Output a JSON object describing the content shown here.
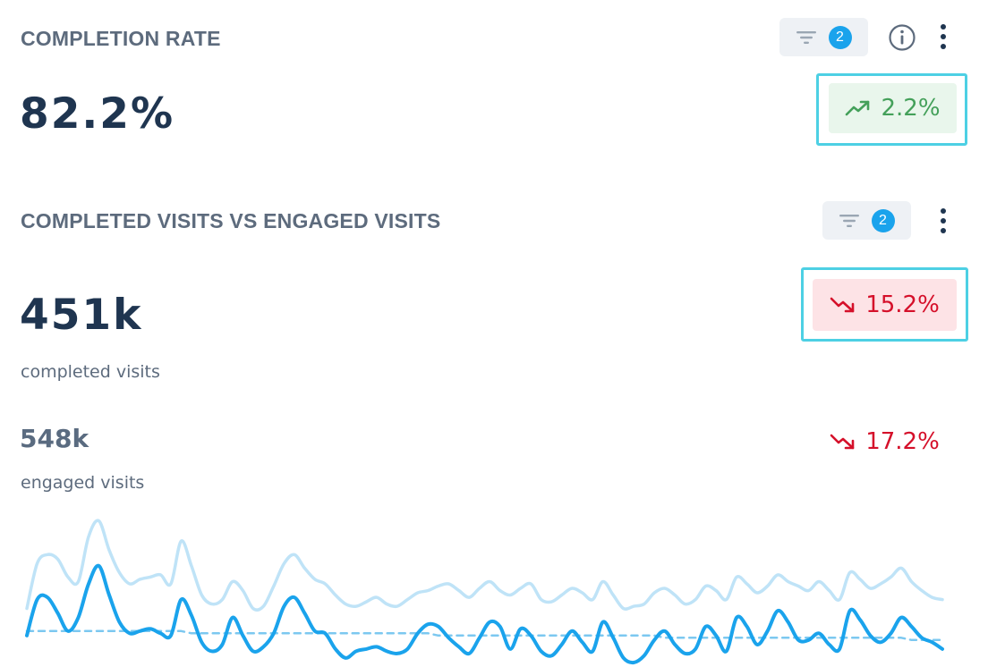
{
  "completion_rate": {
    "title": "COMPLETION RATE",
    "filter_count": "2",
    "value": "82.2%",
    "delta": "2.2%",
    "delta_direction": "up",
    "icons": [
      "filter-icon",
      "info-icon",
      "more-vertical-icon",
      "trend-up-icon"
    ]
  },
  "completed_vs_engaged": {
    "title": "COMPLETED VISITS VS ENGAGED VISITS",
    "filter_count": "2",
    "primary": {
      "value": "451k",
      "label": "completed visits",
      "delta": "15.2%",
      "delta_direction": "down"
    },
    "secondary": {
      "value": "548k",
      "label": "engaged visits",
      "delta": "17.2%",
      "delta_direction": "down"
    },
    "icons": [
      "filter-icon",
      "more-vertical-icon",
      "trend-down-icon"
    ]
  },
  "colors": {
    "heading": "#5d6b7d",
    "value": "#1f3550",
    "badge": "#1aa3ec",
    "up": "#44a05a",
    "up_bg": "#e9f6ec",
    "down": "#d5102a",
    "down_bg": "#fde3e6",
    "highlight": "#4dd0e4",
    "completed_series": "#1aa3ec",
    "engaged_series": "#bfe3f7"
  },
  "chart_data": {
    "type": "line",
    "x": [
      1,
      2,
      3,
      4,
      5,
      6,
      7,
      8,
      9,
      10,
      11,
      12,
      13,
      14,
      15,
      16,
      17,
      18,
      19,
      20,
      21,
      22,
      23,
      24,
      25,
      26,
      27,
      28,
      29,
      30,
      31,
      32,
      33,
      34,
      35,
      36,
      37,
      38,
      39,
      40,
      41,
      42,
      43,
      44,
      45,
      46,
      47,
      48,
      49,
      50,
      51,
      52,
      53,
      54,
      55,
      56,
      57,
      58,
      59,
      60,
      61,
      62,
      63,
      64,
      65,
      66,
      67,
      68,
      69,
      70,
      71,
      72,
      73,
      74,
      75,
      76,
      77,
      78,
      79,
      80,
      81,
      82,
      83,
      84,
      85,
      86,
      87,
      88,
      89,
      90
    ],
    "series": [
      {
        "key": "engaged",
        "values": [
          0.16,
          0.36,
          0.4,
          0.38,
          0.3,
          0.28,
          0.48,
          0.55,
          0.42,
          0.32,
          0.27,
          0.29,
          0.3,
          0.31,
          0.27,
          0.46,
          0.35,
          0.22,
          0.18,
          0.2,
          0.28,
          0.24,
          0.16,
          0.17,
          0.26,
          0.36,
          0.4,
          0.34,
          0.29,
          0.27,
          0.22,
          0.18,
          0.17,
          0.19,
          0.21,
          0.18,
          0.17,
          0.2,
          0.23,
          0.24,
          0.26,
          0.27,
          0.24,
          0.21,
          0.25,
          0.28,
          0.24,
          0.22,
          0.25,
          0.27,
          0.2,
          0.19,
          0.22,
          0.25,
          0.23,
          0.2,
          0.28,
          0.22,
          0.16,
          0.17,
          0.18,
          0.23,
          0.25,
          0.22,
          0.18,
          0.2,
          0.26,
          0.24,
          0.2,
          0.3,
          0.27,
          0.23,
          0.26,
          0.31,
          0.28,
          0.26,
          0.24,
          0.28,
          0.24,
          0.2,
          0.32,
          0.29,
          0.25,
          0.27,
          0.3,
          0.34,
          0.28,
          0.24,
          0.21,
          0.2
        ]
      },
      {
        "key": "completed",
        "values": [
          0.04,
          0.2,
          0.21,
          0.14,
          0.06,
          0.12,
          0.27,
          0.35,
          0.22,
          0.1,
          0.05,
          0.06,
          0.07,
          0.05,
          0.04,
          0.2,
          0.13,
          0.01,
          -0.03,
          0.0,
          0.12,
          0.04,
          -0.03,
          -0.01,
          0.05,
          0.17,
          0.21,
          0.14,
          0.06,
          0.05,
          -0.02,
          -0.06,
          -0.03,
          -0.02,
          -0.01,
          -0.03,
          -0.04,
          -0.02,
          0.05,
          0.09,
          0.08,
          0.03,
          -0.01,
          -0.04,
          0.03,
          0.1,
          0.08,
          -0.02,
          0.07,
          0.04,
          -0.03,
          -0.05,
          0.0,
          0.06,
          0.01,
          -0.03,
          0.1,
          0.03,
          -0.06,
          -0.08,
          -0.05,
          0.02,
          0.06,
          0.0,
          -0.04,
          -0.02,
          0.08,
          0.04,
          -0.03,
          0.12,
          0.08,
          0.0,
          0.06,
          0.15,
          0.1,
          0.02,
          0.02,
          0.05,
          0.0,
          -0.02,
          0.15,
          0.11,
          0.04,
          0.01,
          0.05,
          0.12,
          0.08,
          0.03,
          0.01,
          -0.02
        ]
      },
      {
        "key": "completed_trend",
        "values": [
          0.06,
          0.06,
          0.06,
          0.06,
          0.06,
          0.06,
          0.06,
          0.06,
          0.06,
          0.06,
          0.06,
          0.06,
          0.06,
          0.06,
          0.06,
          0.06,
          0.05,
          0.05,
          0.05,
          0.05,
          0.05,
          0.05,
          0.05,
          0.05,
          0.05,
          0.05,
          0.05,
          0.05,
          0.05,
          0.05,
          0.05,
          0.05,
          0.05,
          0.05,
          0.05,
          0.05,
          0.05,
          0.05,
          0.05,
          0.05,
          0.04,
          0.04,
          0.04,
          0.04,
          0.04,
          0.04,
          0.04,
          0.04,
          0.04,
          0.04,
          0.04,
          0.04,
          0.04,
          0.04,
          0.04,
          0.04,
          0.04,
          0.04,
          0.04,
          0.04,
          0.04,
          0.04,
          0.03,
          0.03,
          0.03,
          0.03,
          0.03,
          0.03,
          0.03,
          0.03,
          0.03,
          0.03,
          0.03,
          0.03,
          0.03,
          0.03,
          0.03,
          0.03,
          0.03,
          0.03,
          0.03,
          0.03,
          0.03,
          0.03,
          0.03,
          0.03,
          0.02,
          0.02,
          0.02,
          0.02
        ]
      }
    ],
    "ylim": [
      -0.1,
      0.6
    ],
    "grid": false,
    "legend": "none"
  }
}
